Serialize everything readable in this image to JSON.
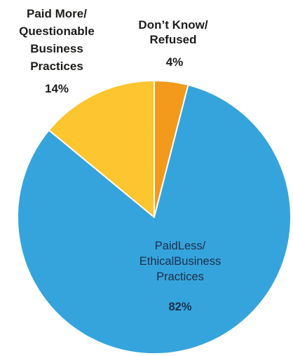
{
  "chart_data": {
    "type": "pie",
    "slices": [
      {
        "label_lines": [
          "Don’t Know/",
          "Refused"
        ],
        "percent_text": "4%",
        "value": 4,
        "color": "#f39a1d"
      },
      {
        "label_lines": [
          "PaidLess/",
          "EthicalBusiness",
          "Practices"
        ],
        "percent_text": "82%",
        "value": 82,
        "color": "#35a4dd"
      },
      {
        "label_lines": [
          "Paid More/",
          "Questionable",
          "Business",
          "Practices"
        ],
        "percent_text": "14%",
        "value": 14,
        "color": "#fdc52f"
      }
    ],
    "start_angle_deg": 0,
    "direction": "clockwise",
    "legend": "none"
  }
}
